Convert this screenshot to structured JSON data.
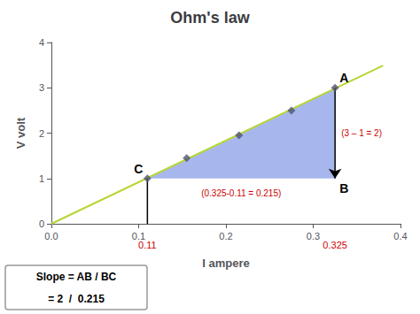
{
  "chart_data": {
    "type": "scatter",
    "title": "Ohm's law",
    "xlabel": "I ampere",
    "ylabel": "V volt",
    "xlim": [
      0,
      0.4
    ],
    "ylim": [
      0,
      4
    ],
    "xticks": [
      {
        "value": 0,
        "label": "0.0"
      },
      0.1,
      0.2,
      0.3,
      0.4
    ],
    "yticks": [
      0,
      1,
      2,
      3,
      4
    ],
    "grid": false,
    "series": [
      {
        "type": "polygon",
        "x": [
          0.11,
          0.325,
          0.325
        ],
        "y": [
          1.0,
          3.0,
          1.0
        ]
      },
      {
        "type": "line",
        "x": [
          0.0,
          0.38
        ],
        "y": [
          0.0,
          3.49
        ]
      },
      {
        "type": "scatter",
        "marker": "diamond",
        "x": [
          0.11,
          0.155,
          0.215,
          0.275,
          0.325
        ],
        "y": [
          1.0,
          1.45,
          1.95,
          2.5,
          3.0
        ]
      },
      {
        "type": "line",
        "marker": "arrow",
        "color": "#000000",
        "x": [
          0.325,
          0.325
        ],
        "y": [
          3.0,
          1.0
        ]
      },
      {
        "type": "line",
        "color": "#000000",
        "x": [
          0.11,
          0.11
        ],
        "y": [
          0,
          1.0
        ]
      }
    ],
    "point_labels": [
      {
        "text": "A",
        "x": 0.325,
        "y": 3.0
      },
      {
        "text": "B",
        "x": 0.325,
        "y": 1.0
      },
      {
        "text": "C",
        "x": 0.11,
        "y": 1.0
      }
    ],
    "annotations": [
      {
        "text": "(3 – 1 = 2)",
        "x": 0.325,
        "y": 2.0,
        "color": "#cc0000"
      },
      {
        "text": "(0.325-0.11 = 0.215)",
        "x": 0.2175,
        "y": 1.0,
        "color": "#cc0000"
      }
    ],
    "axis_notes": [
      {
        "text": "0.11",
        "x": 0.11,
        "color": "#cc0000"
      },
      {
        "text": "0.325",
        "x": 0.325,
        "color": "#cc0000"
      }
    ],
    "text_box": [
      "Slope = AB / BC",
      "= 2  /  0.215"
    ]
  }
}
